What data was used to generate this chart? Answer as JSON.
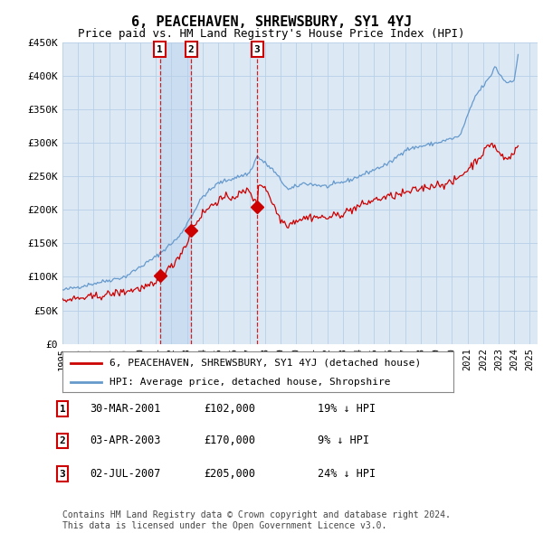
{
  "title": "6, PEACEHAVEN, SHREWSBURY, SY1 4YJ",
  "subtitle": "Price paid vs. HM Land Registry's House Price Index (HPI)",
  "title_fontsize": 11,
  "subtitle_fontsize": 9,
  "background_color": "#ffffff",
  "plot_bg_color": "#dce9f5",
  "grid_color": "#b8cfe8",
  "shade_color": "#c5d9ee",
  "ylim": [
    0,
    450000
  ],
  "yticks": [
    0,
    50000,
    100000,
    150000,
    200000,
    250000,
    300000,
    350000,
    400000,
    450000
  ],
  "ytick_labels": [
    "£0",
    "£50K",
    "£100K",
    "£150K",
    "£200K",
    "£250K",
    "£300K",
    "£350K",
    "£400K",
    "£450K"
  ],
  "xlim_start": 1995.0,
  "xlim_end": 2025.5,
  "sale_dates": [
    2001.246,
    2003.254,
    2007.497
  ],
  "sale_prices": [
    102000,
    170000,
    205000
  ],
  "sale_labels": [
    "1",
    "2",
    "3"
  ],
  "shade_x1": 2001.246,
  "shade_x2": 2003.254,
  "sale_info": [
    {
      "label": "1",
      "date": "30-MAR-2001",
      "price": "£102,000",
      "hpi": "19% ↓ HPI"
    },
    {
      "label": "2",
      "date": "03-APR-2003",
      "price": "£170,000",
      "hpi": "9% ↓ HPI"
    },
    {
      "label": "3",
      "date": "02-JUL-2007",
      "price": "£205,000",
      "hpi": "24% ↓ HPI"
    }
  ],
  "red_line_color": "#cc0000",
  "blue_line_color": "#6699cc",
  "legend_label_red": "6, PEACEHAVEN, SHREWSBURY, SY1 4YJ (detached house)",
  "legend_label_blue": "HPI: Average price, detached house, Shropshire",
  "footer_text": "Contains HM Land Registry data © Crown copyright and database right 2024.\nThis data is licensed under the Open Government Licence v3.0."
}
